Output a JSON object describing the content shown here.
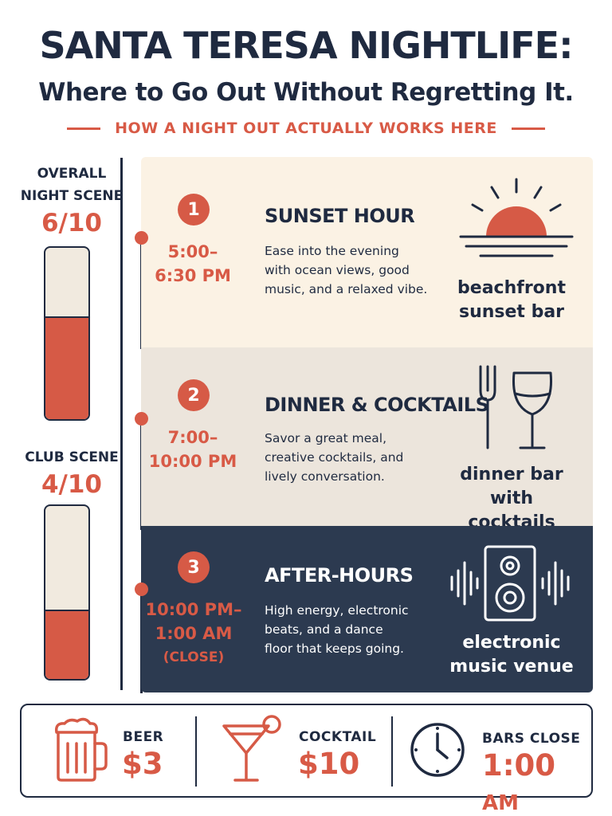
{
  "header": {
    "title": "SANTA TERESA NIGHTLIFE:",
    "subtitle": "Where to Go Out Without Regretting It.",
    "tagline": "HOW A NIGHT OUT ACTUALLY WORKS HERE"
  },
  "ratings": [
    {
      "label_line1": "OVERALL",
      "label_line2": "NIGHT SCENE",
      "score": "6/10",
      "value": 6,
      "max": 10
    },
    {
      "label_line1": "CLUB SCENE",
      "label_line2": "",
      "score": "4/10",
      "value": 4,
      "max": 10
    }
  ],
  "stages": [
    {
      "number": "1",
      "time_line1": "5:00–",
      "time_line2": "6:30 PM",
      "time_line3": "",
      "heading": "SUNSET HOUR",
      "desc_line1": "Ease into the evening",
      "desc_line2": "with ocean views, good",
      "desc_line3": "music, and a relaxed vibe.",
      "icon": "sunset-icon",
      "caption_line1": "beachfront",
      "caption_line2": "sunset bar"
    },
    {
      "number": "2",
      "time_line1": "7:00–",
      "time_line2": "10:00 PM",
      "time_line3": "",
      "heading": "DINNER & COCKTAILS",
      "desc_line1": "Savor a great meal,",
      "desc_line2": "creative cocktails, and",
      "desc_line3": "lively conversation.",
      "icon": "fork-and-wine-glass-icon",
      "caption_line1": "dinner bar",
      "caption_line2": "with cocktails"
    },
    {
      "number": "3",
      "time_line1": "10:00 PM–",
      "time_line2": "1:00 AM",
      "time_line3": "(CLOSE)",
      "heading": "AFTER-HOURS",
      "desc_line1": "High energy, electronic",
      "desc_line2": "beats, and a dance",
      "desc_line3": "floor that keeps going.",
      "icon": "speaker-icon",
      "caption_line1": "electronic",
      "caption_line2": "music venue"
    }
  ],
  "prices": [
    {
      "label": "BEER",
      "value": "$3",
      "unit": "",
      "icon": "beer-mug-icon"
    },
    {
      "label": "COCKTAIL",
      "value": "$10",
      "unit": "",
      "icon": "cocktail-glass-icon"
    },
    {
      "label": "BARS CLOSE",
      "value": "1:00",
      "unit": "AM",
      "icon": "clock-icon"
    }
  ],
  "colors": {
    "accent": "#d85a46",
    "navy": "#1f2a40",
    "panel1": "#fbf2e4",
    "panel2": "#ece5dc",
    "panel3": "#2c3a50"
  }
}
